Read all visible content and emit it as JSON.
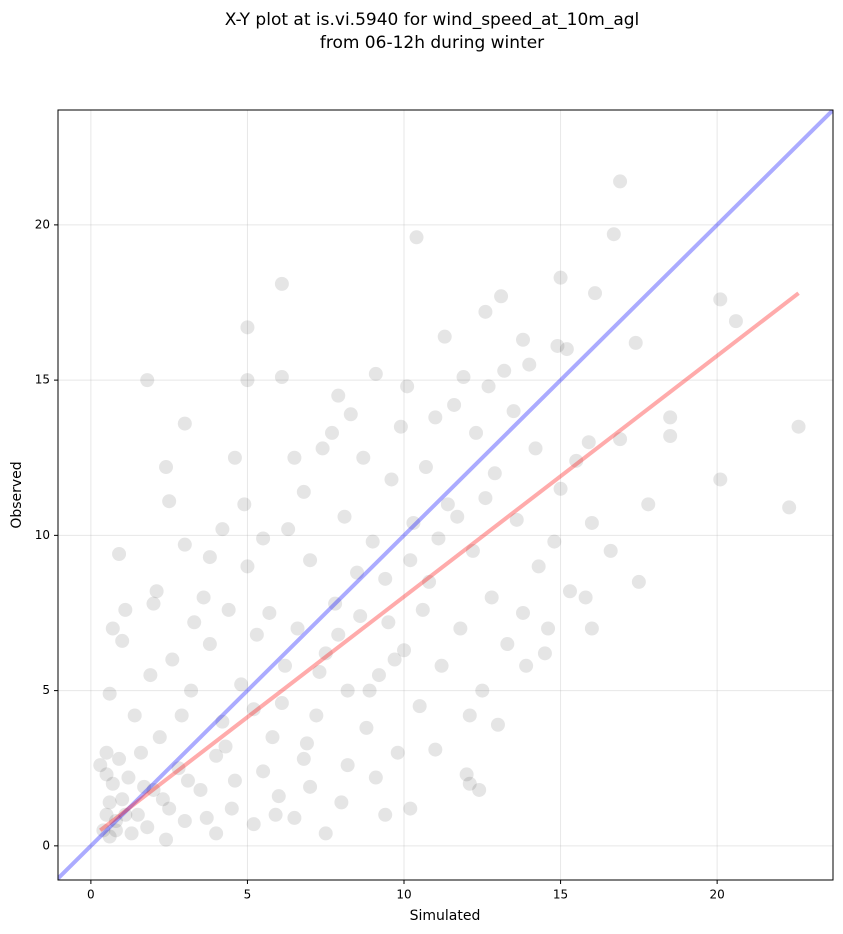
{
  "chart_data": {
    "type": "scatter",
    "title": [
      "X-Y plot at is.vi.5940 for wind_speed_at_10m_agl",
      "from 06-12h during winter"
    ],
    "xlabel": "Simulated",
    "ylabel": "Observed",
    "xlim": [
      -1.05,
      23.7
    ],
    "ylim": [
      -1.1,
      23.7
    ],
    "xticks": [
      0,
      5,
      10,
      15,
      20
    ],
    "yticks": [
      0,
      5,
      10,
      15,
      20
    ],
    "grid": true,
    "series": [
      {
        "color": "#000000",
        "alpha": 0.1,
        "x": [
          16.9,
          16.7,
          10.4,
          6.1,
          15.0,
          16.1,
          13.1,
          20.1,
          20.6,
          12.6,
          5.0,
          11.3,
          17.4,
          14.9,
          15.2,
          1.8,
          5.0,
          6.1,
          9.1,
          3.0,
          7.9,
          18.5,
          22.6,
          18.5,
          16.9,
          2.4,
          4.6,
          20.1,
          22.3,
          17.8,
          0.9,
          2.5,
          3.8,
          1.1,
          1.0,
          0.7,
          2.1,
          3.0,
          17.5,
          16.0,
          16.6,
          16.0,
          12.0,
          12.4,
          10.2,
          9.4,
          8.0,
          7.5,
          4.0,
          11.0,
          12.1,
          0.5,
          0.6,
          0.4,
          0.7,
          0.5,
          0.8,
          1.0,
          1.2,
          0.3,
          0.6,
          1.5,
          1.8,
          2.0,
          2.5,
          3.0,
          2.2,
          1.4,
          0.6,
          2.8,
          3.5,
          4.0,
          4.5,
          5.2,
          5.5,
          6.0,
          6.5,
          4.2,
          3.2,
          2.6,
          1.9,
          3.8,
          4.8,
          5.8,
          6.8,
          7.2,
          6.2,
          5.3,
          4.4,
          3.6,
          5.7,
          6.6,
          7.5,
          8.2,
          8.8,
          9.2,
          7.8,
          8.5,
          7.0,
          6.3,
          5.0,
          4.9,
          6.8,
          7.4,
          8.1,
          9.0,
          9.5,
          10.0,
          10.5,
          9.8,
          11.2,
          11.8,
          10.8,
          10.3,
          9.6,
          8.7,
          9.9,
          10.7,
          11.4,
          12.2,
          12.8,
          13.3,
          12.5,
          13.8,
          14.3,
          13.6,
          12.9,
          12.3,
          11.6,
          12.7,
          13.5,
          14.2,
          15.0,
          14.8,
          15.3,
          14.6,
          13.9,
          12.1,
          11.0,
          10.1,
          13.2,
          14.0,
          13.8,
          11.9,
          15.5,
          15.9,
          14.5,
          15.8,
          13.0,
          8.3,
          7.7,
          6.5,
          5.5,
          4.2,
          3.3,
          2.9,
          2.0,
          1.6,
          0.9,
          1.3,
          2.4,
          3.7,
          4.6,
          5.9,
          7.0,
          8.2,
          9.1,
          6.9,
          7.9,
          8.6,
          9.4,
          10.2,
          11.1,
          11.7,
          12.6,
          10.6,
          9.7,
          8.9,
          7.3,
          6.1,
          5.2,
          4.3,
          3.1,
          2.3,
          1.7,
          0.5,
          0.8,
          1.1
        ],
        "values": [
          21.4,
          19.7,
          19.6,
          18.1,
          18.3,
          17.8,
          17.7,
          17.6,
          16.9,
          17.2,
          16.7,
          16.4,
          16.2,
          16.1,
          16.0,
          15.0,
          15.0,
          15.1,
          15.2,
          13.6,
          14.5,
          13.8,
          13.5,
          13.2,
          13.1,
          12.2,
          12.5,
          11.8,
          10.9,
          11.0,
          9.4,
          11.1,
          9.3,
          7.6,
          6.6,
          7.0,
          8.2,
          9.7,
          8.5,
          7.0,
          9.5,
          10.4,
          2.3,
          1.8,
          1.2,
          1.0,
          1.4,
          0.4,
          0.4,
          3.1,
          2.0,
          1.0,
          1.4,
          0.5,
          2.0,
          3.0,
          0.8,
          1.5,
          2.2,
          2.6,
          0.3,
          1.0,
          0.6,
          1.8,
          1.2,
          0.8,
          3.5,
          4.2,
          4.9,
          2.5,
          1.8,
          2.9,
          1.2,
          0.7,
          2.4,
          1.6,
          0.9,
          4.0,
          5.0,
          6.0,
          5.5,
          6.5,
          5.2,
          3.5,
          2.8,
          4.2,
          5.8,
          6.8,
          7.6,
          8.0,
          7.5,
          7.0,
          6.2,
          5.0,
          3.8,
          5.5,
          7.8,
          8.8,
          9.2,
          10.2,
          9.0,
          11.0,
          11.4,
          12.8,
          10.6,
          9.8,
          7.2,
          6.3,
          4.5,
          3.0,
          5.8,
          7.0,
          8.5,
          10.4,
          11.8,
          12.5,
          13.5,
          12.2,
          11.0,
          9.5,
          8.0,
          6.5,
          5.0,
          7.5,
          9.0,
          10.5,
          12.0,
          13.3,
          14.2,
          14.8,
          14.0,
          12.8,
          11.5,
          9.8,
          8.2,
          7.0,
          5.8,
          4.2,
          13.8,
          14.8,
          15.3,
          15.5,
          16.3,
          15.1,
          12.4,
          13.0,
          6.2,
          8.0,
          3.9,
          13.9,
          13.3,
          12.5,
          9.9,
          10.2,
          7.2,
          4.2,
          7.8,
          3.0,
          2.8,
          0.4,
          0.2,
          0.9,
          2.1,
          1.0,
          1.9,
          2.6,
          2.2,
          3.3,
          6.8,
          7.4,
          8.6,
          9.2,
          9.9,
          10.6,
          11.2,
          7.6,
          6.0,
          5.0,
          5.6,
          4.6,
          4.4,
          3.2,
          2.1,
          1.5,
          1.9,
          2.3,
          0.5,
          1.0
        ]
      }
    ],
    "lines": [
      {
        "color": "#0000ff",
        "alpha": 0.33,
        "x": [
          -1.05,
          23.7
        ],
        "values": [
          -1.05,
          23.7
        ]
      },
      {
        "color": "#ff0000",
        "alpha": 0.33,
        "x": [
          0.3,
          22.6
        ],
        "values": [
          0.5,
          17.8
        ]
      }
    ]
  }
}
